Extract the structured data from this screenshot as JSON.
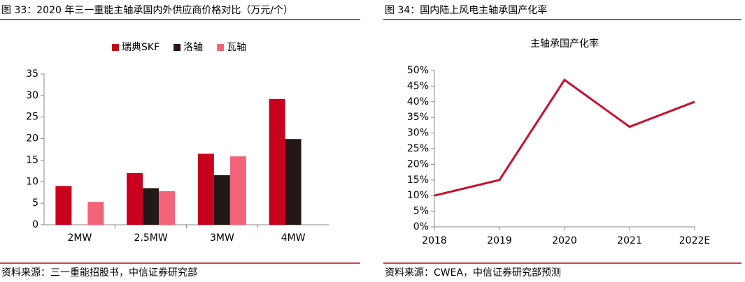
{
  "chart_data": [
    {
      "type": "bar",
      "title": "图 33：2020 年三一重能主轴承国内外供应商价格对比（万元/个）",
      "source": "资料来源：三一重能招股书，中信证券研究部",
      "categories": [
        "2MW",
        "2.5MW",
        "3MW",
        "4MW"
      ],
      "series": [
        {
          "name": "瑞典SKF",
          "color": "#c8001e",
          "values": [
            9,
            12,
            16.5,
            29.2
          ]
        },
        {
          "name": "洛轴",
          "color": "#231815",
          "values": [
            null,
            8.5,
            11.5,
            19.9
          ]
        },
        {
          "name": "瓦轴",
          "color": "#f2637a",
          "values": [
            5.3,
            7.8,
            15.9,
            null
          ]
        }
      ],
      "ylim": [
        0,
        35
      ],
      "yticks": [
        0,
        5,
        10,
        15,
        20,
        25,
        30,
        35
      ],
      "legend": "top"
    },
    {
      "type": "line",
      "title": "图 34：国内陆上风电主轴承国产化率",
      "source": "资料来源：CWEA，中信证券研究部预测",
      "subtitle": "主轴承国产化率",
      "categories": [
        "2018",
        "2019",
        "2020",
        "2021",
        "2022E"
      ],
      "series": [
        {
          "name": "主轴承国产化率",
          "color": "#c8102e",
          "values": [
            10,
            15,
            47,
            32,
            40
          ]
        }
      ],
      "ylim": [
        0,
        50
      ],
      "yticks": [
        {
          "value": 0,
          "label": "0%"
        },
        {
          "value": 5,
          "label": "5%"
        },
        {
          "value": 10,
          "label": "10%"
        },
        {
          "value": 15,
          "label": "15%"
        },
        {
          "value": 20,
          "label": "20%"
        },
        {
          "value": 25,
          "label": "25%"
        },
        {
          "value": 30,
          "label": "30%"
        },
        {
          "value": 35,
          "label": "35%"
        },
        {
          "value": 40,
          "label": "40%"
        },
        {
          "value": 45,
          "label": "45%"
        },
        {
          "value": 50,
          "label": "50%"
        }
      ]
    }
  ]
}
